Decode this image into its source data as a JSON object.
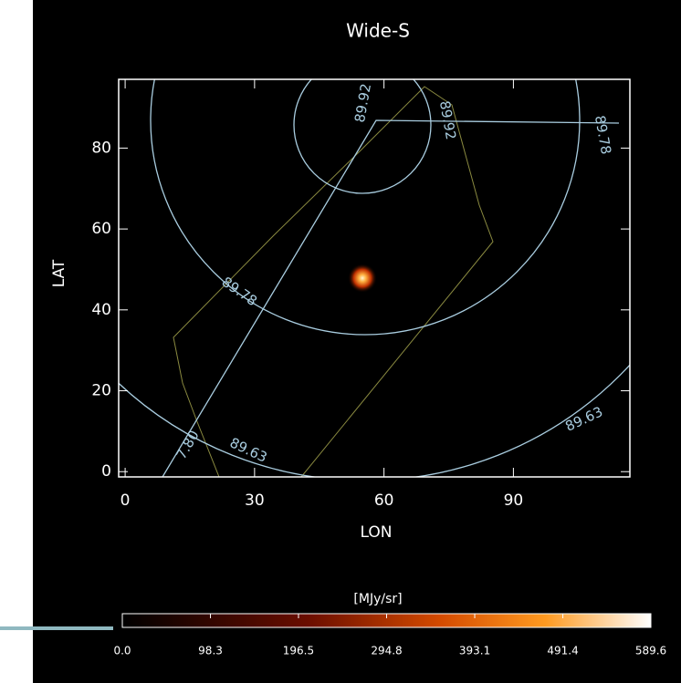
{
  "chart_data": {
    "type": "map",
    "title": "Wide-S",
    "x_label": "LON",
    "y_label": "LAT",
    "xlim": [
      -1.5,
      117
    ],
    "ylim": [
      -1.3,
      97
    ],
    "xticks": [
      0,
      30,
      60,
      90
    ],
    "yticks": [
      0,
      20,
      40,
      60,
      80
    ],
    "contour_labels": [
      "89.92",
      "89.92",
      "89.78",
      "89.78",
      "89.63",
      "89.63",
      "7.80"
    ],
    "colorbar": {
      "label": "[MJy/sr]",
      "lim": [
        0,
        589.6
      ],
      "ticks": [
        {
          "value": 0,
          "label": "0.0"
        },
        98.3,
        196.5,
        294.8,
        393.1,
        491.4,
        589.6
      ]
    }
  }
}
